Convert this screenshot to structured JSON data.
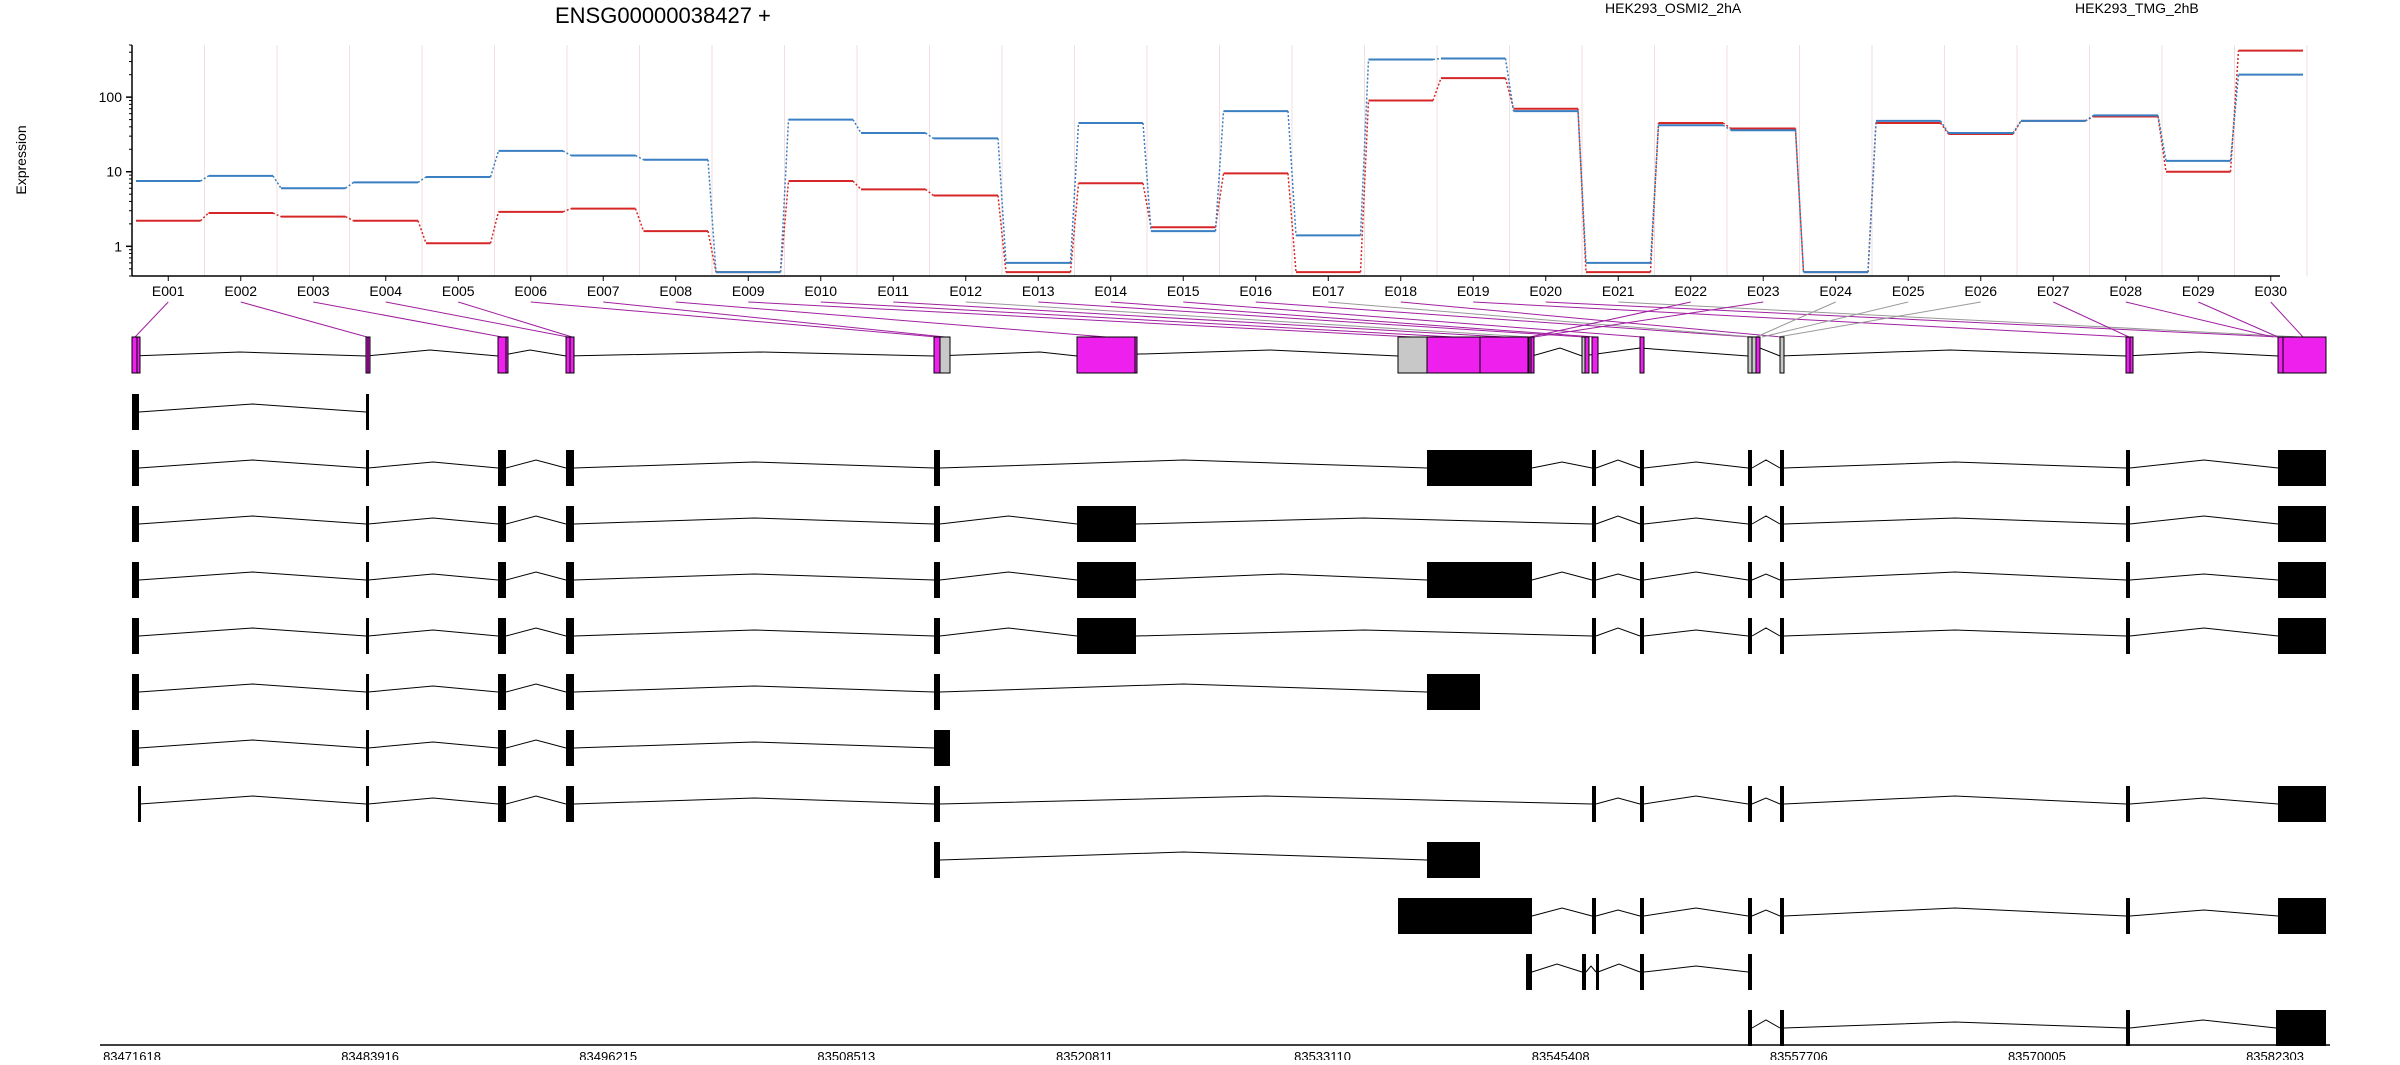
{
  "chart_data": {
    "type": "line",
    "title": "ENSG00000038427 +",
    "ylabel": "Expression",
    "yscale": "log",
    "ylim": [
      0.4,
      500
    ],
    "yticks": [
      1,
      10,
      100
    ],
    "ytick_labels": [
      "1",
      "10",
      "100"
    ],
    "x": [
      "E001",
      "E002",
      "E003",
      "E004",
      "E005",
      "E006",
      "E007",
      "E008",
      "E009",
      "E010",
      "E011",
      "E012",
      "E013",
      "E014",
      "E015",
      "E016",
      "E017",
      "E018",
      "E019",
      "E020",
      "E021",
      "E022",
      "E023",
      "E024",
      "E025",
      "E026",
      "E027",
      "E028",
      "E029",
      "E030"
    ],
    "legend_placement": "top",
    "series": [
      {
        "name": "HEK293_OSMI2_2hA",
        "color": "#d62728",
        "values": [
          2.2,
          2.8,
          2.5,
          2.2,
          1.1,
          2.9,
          3.2,
          1.6,
          0.45,
          7.5,
          5.8,
          4.8,
          0.45,
          7.0,
          1.8,
          9.5,
          0.45,
          90,
          180,
          70,
          0.45,
          45,
          38,
          0.45,
          45,
          32,
          48,
          55,
          10,
          420
        ]
      },
      {
        "name": "HEK293_TMG_2hB",
        "color": "#3a7fc1",
        "values": [
          7.5,
          8.8,
          6.0,
          7.2,
          8.5,
          19,
          16.5,
          14.5,
          0.45,
          50,
          33,
          28,
          0.6,
          45,
          1.6,
          65,
          1.4,
          320,
          330,
          65,
          0.6,
          42,
          36,
          0.45,
          48,
          33,
          48,
          57,
          14,
          200
        ]
      }
    ],
    "exon_track_color": "#ee20ee",
    "exon_track_bins": [
      "dexseq-tested",
      "dexseq-tested",
      "dexseq-tested",
      "dexseq-tested",
      "dexseq-tested",
      "dexseq-tested",
      "dexseq-tested",
      "dexseq-tested",
      "dexseq-tested",
      "dexseq-tested",
      "dexseq-tested",
      "not-tested",
      "dexseq-tested",
      "dexseq-tested",
      "dexseq-tested",
      "dexseq-tested",
      "not-tested",
      "dexseq-tested",
      "dexseq-tested",
      "dexseq-tested",
      "not-tested",
      "dexseq-tested",
      "dexseq-tested",
      "not-tested",
      "not-tested",
      "not-tested",
      "dexseq-tested",
      "dexseq-tested",
      "dexseq-tested",
      "dexseq-tested"
    ],
    "genomic_coordinates": [
      "83471618",
      "83483916",
      "83496215",
      "83508513",
      "83520811",
      "83533110",
      "83545408",
      "83557706",
      "83570005",
      "83582303"
    ]
  }
}
